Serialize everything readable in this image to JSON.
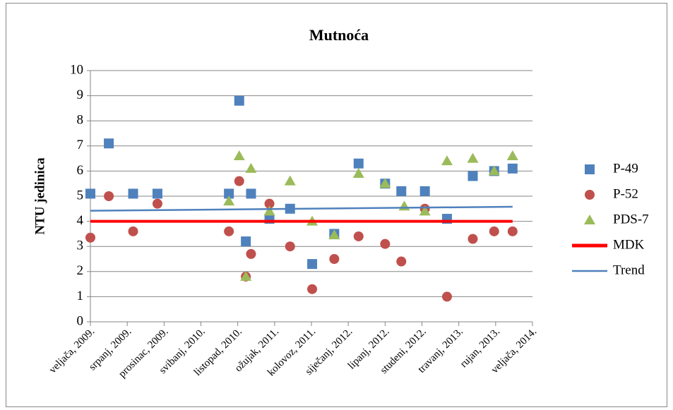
{
  "chart_data": {
    "type": "scatter",
    "title": "Mutnoća",
    "y_label": "NTU jedinica",
    "xlim": [
      0,
      60
    ],
    "ylim": [
      0,
      10
    ],
    "yticks": [
      0,
      1,
      2,
      3,
      4,
      5,
      6,
      7,
      8,
      9,
      10
    ],
    "grid": true,
    "legend": "right",
    "xticks": [
      {
        "value": 0,
        "label": "veljača, 2009."
      },
      {
        "value": 5,
        "label": "srpanj, 2009."
      },
      {
        "value": 10,
        "label": "prosinac, 2009."
      },
      {
        "value": 15,
        "label": "svibanj, 2010."
      },
      {
        "value": 20,
        "label": "listopad, 2010."
      },
      {
        "value": 25,
        "label": "ožujak, 2011."
      },
      {
        "value": 30,
        "label": "kolovoz, 2011."
      },
      {
        "value": 35,
        "label": "siječanj, 2012."
      },
      {
        "value": 40,
        "label": "lipanj, 2012."
      },
      {
        "value": 45,
        "label": "studeni, 2012."
      },
      {
        "value": 50,
        "label": "travanj, 2013."
      },
      {
        "value": 55,
        "label": "rujan, 2013."
      },
      {
        "value": 60,
        "label": "veljača, 2014."
      }
    ],
    "series": [
      {
        "name": "P-49",
        "color": "#4f81bd",
        "marker": "square",
        "x": [
          0,
          2.5,
          5.8,
          9.1,
          18.8,
          20.2,
          21.1,
          21.8,
          24.3,
          27.1,
          30.1,
          33.1,
          36.4,
          40.0,
          42.2,
          45.4,
          48.4,
          51.9,
          54.8,
          57.3
        ],
        "values": [
          5.1,
          7.1,
          5.1,
          5.1,
          5.1,
          8.8,
          3.2,
          5.1,
          4.1,
          4.5,
          2.3,
          3.5,
          6.3,
          5.5,
          5.2,
          5.2,
          4.1,
          5.8,
          6.0,
          6.1
        ]
      },
      {
        "name": "P-52",
        "color": "#c0504d",
        "marker": "circle",
        "x": [
          0,
          2.5,
          5.8,
          9.1,
          18.8,
          20.2,
          21.1,
          21.8,
          24.3,
          27.1,
          30.1,
          33.1,
          36.4,
          40.0,
          42.2,
          45.4,
          48.4,
          51.9,
          54.8,
          57.3
        ],
        "values": [
          3.35,
          5.0,
          3.6,
          4.7,
          3.6,
          5.6,
          1.8,
          2.7,
          4.7,
          3.0,
          1.3,
          2.5,
          3.4,
          3.1,
          2.4,
          4.5,
          1.0,
          3.3,
          3.6,
          3.6
        ]
      },
      {
        "name": "PDS-7",
        "color": "#9bbb59",
        "marker": "triangle",
        "x": [
          18.8,
          20.2,
          21.1,
          21.8,
          24.3,
          27.1,
          30.1,
          33.1,
          36.4,
          40.0,
          42.6,
          45.4,
          48.4,
          51.9,
          54.8,
          57.3
        ],
        "values": [
          4.8,
          6.6,
          1.8,
          6.1,
          4.4,
          5.6,
          4.0,
          3.45,
          5.9,
          5.5,
          4.6,
          4.4,
          6.4,
          6.5,
          6.0,
          6.6
        ]
      },
      {
        "name": "MDK",
        "color": "#ff0000",
        "marker": "thick-line",
        "x": [
          0,
          57.3
        ],
        "values": [
          4,
          4
        ]
      },
      {
        "name": "Trend",
        "color": "#4f81bd",
        "marker": "line",
        "x": [
          0,
          57.3
        ],
        "values": [
          4.42,
          4.58
        ]
      }
    ]
  }
}
